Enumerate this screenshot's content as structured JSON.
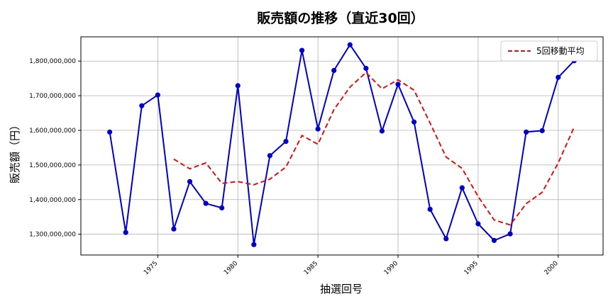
{
  "chart_data": {
    "type": "line",
    "title": "販売額の推移（直近30回）",
    "xlabel": "抽選回号",
    "ylabel": "販売額（円）",
    "x": [
      1972,
      1973,
      1974,
      1975,
      1976,
      1977,
      1978,
      1979,
      1980,
      1981,
      1982,
      1983,
      1984,
      1985,
      1986,
      1987,
      1988,
      1989,
      1990,
      1991,
      1992,
      1993,
      1994,
      1995,
      1996,
      1997,
      1998,
      1999,
      2000,
      2001
    ],
    "xlim": [
      1970.2,
      2002.8
    ],
    "ylim": [
      1240000000,
      1870000000
    ],
    "xticks": [
      1975,
      1980,
      1985,
      1990,
      1995,
      2000
    ],
    "xtick_labels": [
      "1975",
      "1980",
      "1985",
      "1990",
      "1995",
      "2000"
    ],
    "yticks": [
      1300000000,
      1400000000,
      1500000000,
      1600000000,
      1700000000,
      1800000000
    ],
    "ytick_labels": [
      "1,300,000,000",
      "1,400,000,000",
      "1,500,000,000",
      "1,600,000,000",
      "1,700,000,000",
      "1,800,000,000"
    ],
    "grid": true,
    "legend_position": "top-right",
    "series": [
      {
        "name": "",
        "color": "#0000cc",
        "style": "solid",
        "marker": "circle",
        "values": [
          1595000000,
          1305000000,
          1671000000,
          1702000000,
          1315000000,
          1452000000,
          1389000000,
          1376000000,
          1729000000,
          1270000000,
          1527000000,
          1568000000,
          1831000000,
          1604000000,
          1773000000,
          1847000000,
          1779000000,
          1598000000,
          1733000000,
          1624000000,
          1372000000,
          1287000000,
          1434000000,
          1330000000,
          1282000000,
          1301000000,
          1595000000,
          1599000000,
          1753000000,
          1801000000
        ]
      },
      {
        "name": "5回移動平均",
        "color": "#dd1111",
        "style": "dashed",
        "marker": "none",
        "values": [
          null,
          null,
          null,
          null,
          1517000000,
          1489000000,
          1506000000,
          1447000000,
          1452000000,
          1443000000,
          1459000000,
          1494000000,
          1585000000,
          1560000000,
          1660000000,
          1725000000,
          1767000000,
          1720000000,
          1746000000,
          1716000000,
          1621000000,
          1523000000,
          1490000000,
          1409000000,
          1341000000,
          1327000000,
          1388000000,
          1421000000,
          1506000000,
          1610000000
        ]
      }
    ]
  }
}
